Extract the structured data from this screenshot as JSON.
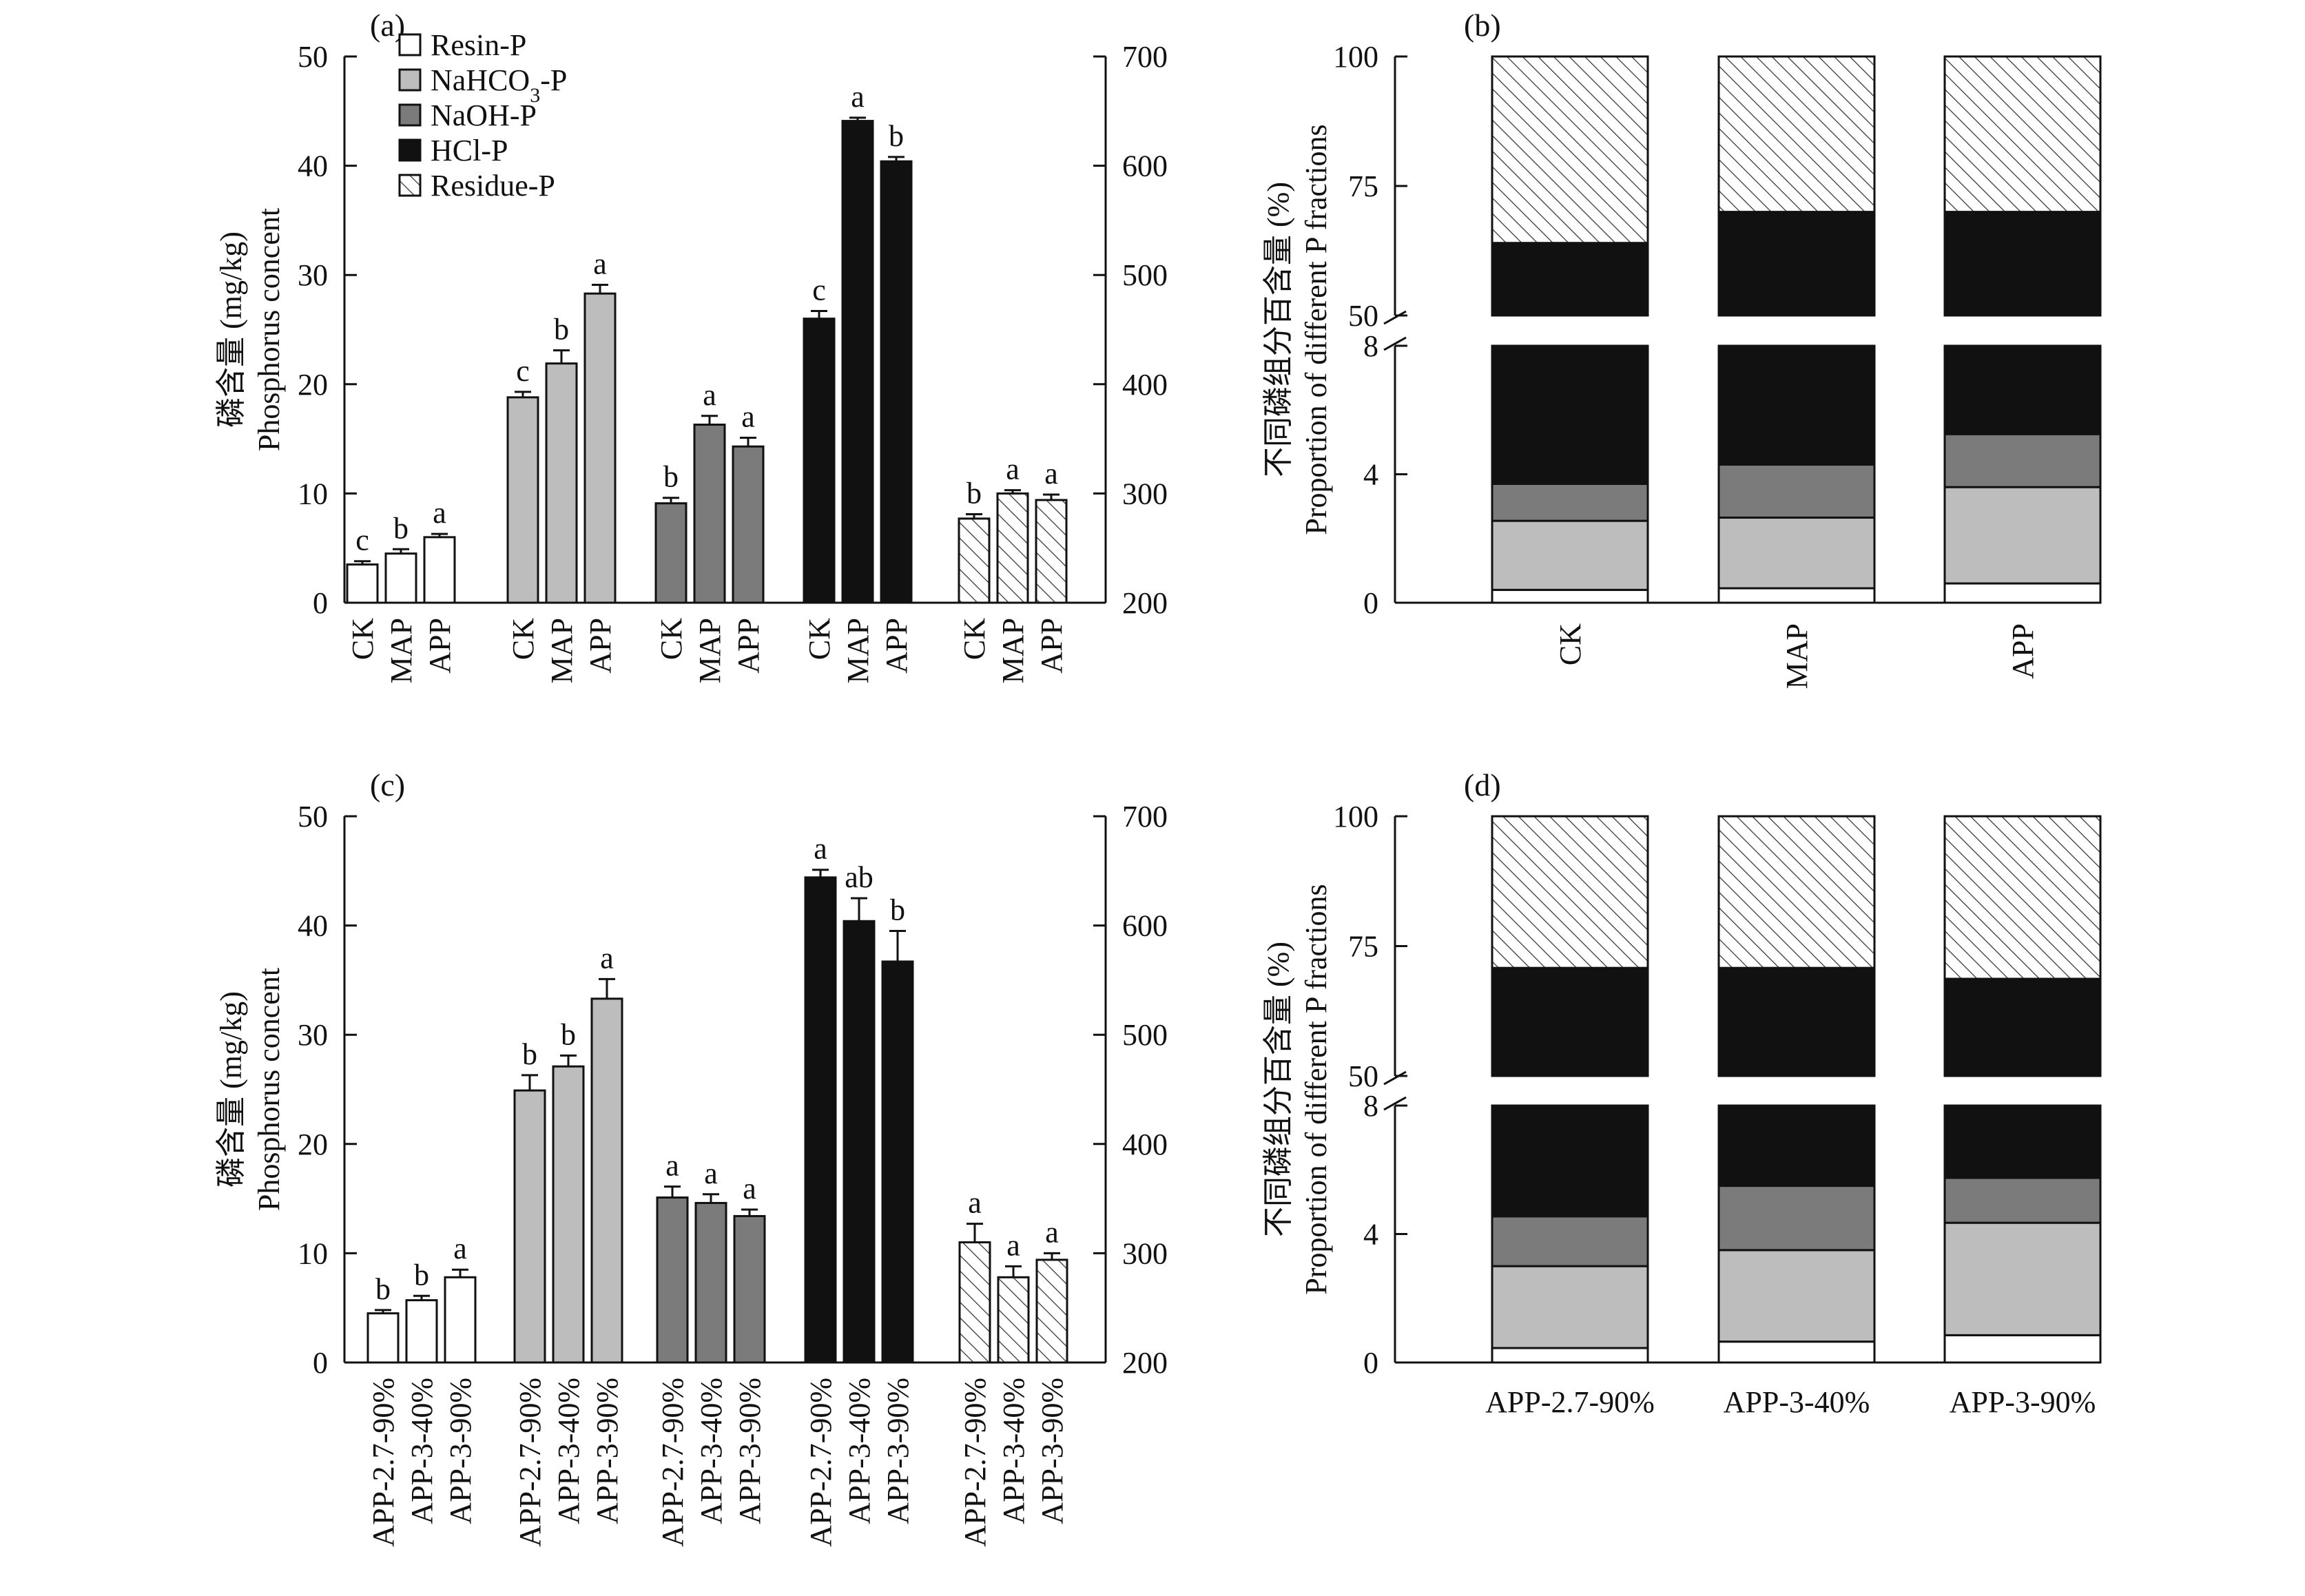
{
  "colors": {
    "resin": "#ffffff",
    "nahco3": "#bdbdbd",
    "naoh": "#7b7b7b",
    "hcl": "#111111",
    "residue": "hatch",
    "axis": "#111111"
  },
  "legend": {
    "items": [
      {
        "key": "resin",
        "label": "Resin-P"
      },
      {
        "key": "nahco3",
        "label": "NaHCO",
        "sub": "3",
        "suffix": "-P"
      },
      {
        "key": "naoh",
        "label": "NaOH-P"
      },
      {
        "key": "hcl",
        "label": "HCl-P"
      },
      {
        "key": "residue",
        "label": "Residue-P"
      }
    ]
  },
  "axes_text": {
    "left_ylabel_cn": "磷含量 (mg/kg)",
    "left_ylabel_en": "Phosphorus concent",
    "right_ylabel_cn": "不同磷组分百含量 (%)",
    "right_ylabel_en": "Proportion of different P fractions",
    "break_upper_min": "50",
    "break_lower_max": "8"
  },
  "chart_data": [
    {
      "panel": "(a)",
      "type": "bar",
      "title": "",
      "ylabel": "磷含量 (mg/kg) Phosphorus concent",
      "ylim": [
        0,
        50
      ],
      "yticks": [
        0,
        10,
        20,
        30,
        40,
        50
      ],
      "y2lim": [
        200,
        700
      ],
      "y2ticks": [
        200,
        300,
        400,
        500,
        600,
        700
      ],
      "y2_used_by": [
        "hcl",
        "residue"
      ],
      "categories": [
        "CK",
        "MAP",
        "APP"
      ],
      "series": [
        {
          "name": "Resin-P",
          "key": "resin",
          "axis": "left",
          "values": [
            3.5,
            4.5,
            6.0
          ],
          "errors": [
            0.3,
            0.4,
            0.3
          ],
          "letters": [
            "c",
            "b",
            "a"
          ]
        },
        {
          "name": "NaHCO3-P",
          "key": "nahco3",
          "axis": "left",
          "values": [
            18.8,
            21.9,
            28.3
          ],
          "errors": [
            0.5,
            1.2,
            0.8
          ],
          "letters": [
            "c",
            "b",
            "a"
          ]
        },
        {
          "name": "NaOH-P",
          "key": "naoh",
          "axis": "left",
          "values": [
            9.1,
            16.3,
            14.3
          ],
          "errors": [
            0.5,
            0.8,
            0.8
          ],
          "letters": [
            "b",
            "a",
            "a"
          ]
        },
        {
          "name": "HCl-P",
          "key": "hcl",
          "axis": "right",
          "values": [
            460,
            641,
            604
          ],
          "errors": [
            7,
            3,
            4
          ],
          "letters": [
            "c",
            "a",
            "b"
          ]
        },
        {
          "name": "Residue-P",
          "key": "residue",
          "axis": "right",
          "values": [
            277,
            300,
            294
          ],
          "errors": [
            4,
            3,
            5
          ],
          "letters": [
            "b",
            "a",
            "a"
          ]
        }
      ]
    },
    {
      "panel": "(b)",
      "type": "bar",
      "stacked": true,
      "title": "",
      "ylabel": "不同磷组分百含量 (%) Proportion of different P fractions",
      "broken_axis": {
        "lower": [
          0,
          8
        ],
        "upper": [
          50,
          100
        ]
      },
      "yticks_lower": [
        0,
        4,
        8
      ],
      "yticks_upper": [
        50,
        75,
        100
      ],
      "categories": [
        "CK",
        "MAP",
        "APP"
      ],
      "series": [
        {
          "name": "Resin-P",
          "key": "resin",
          "values": [
            0.4,
            0.45,
            0.6
          ]
        },
        {
          "name": "NaHCO3-P",
          "key": "nahco3",
          "values": [
            2.15,
            2.2,
            3.0
          ]
        },
        {
          "name": "NaOH-P",
          "key": "naoh",
          "values": [
            1.15,
            1.65,
            1.65
          ]
        },
        {
          "name": "HCl-P",
          "key": "hcl",
          "values": [
            60.3,
            65.7,
            64.75
          ]
        },
        {
          "name": "Residue-P",
          "key": "residue",
          "values": [
            36.0,
            30.0,
            30.0
          ]
        }
      ]
    },
    {
      "panel": "(c)",
      "type": "bar",
      "title": "",
      "ylabel": "磷含量 (mg/kg) Phosphorus concent",
      "ylim": [
        0,
        50
      ],
      "yticks": [
        0,
        10,
        20,
        30,
        40,
        50
      ],
      "y2lim": [
        200,
        700
      ],
      "y2ticks": [
        200,
        300,
        400,
        500,
        600,
        700
      ],
      "y2_used_by": [
        "hcl",
        "residue"
      ],
      "categories": [
        "APP-2.7-90%",
        "APP-3-40%",
        "APP-3-90%"
      ],
      "series": [
        {
          "name": "Resin-P",
          "key": "resin",
          "values": [
            4.5,
            5.7,
            7.8
          ],
          "axis": "left",
          "errors": [
            0.3,
            0.4,
            0.7
          ],
          "letters": [
            "b",
            "b",
            "a"
          ]
        },
        {
          "name": "NaHCO3-P",
          "key": "nahco3",
          "values": [
            24.9,
            27.1,
            33.3
          ],
          "axis": "left",
          "errors": [
            1.4,
            1.0,
            1.8
          ],
          "letters": [
            "b",
            "b",
            "a"
          ]
        },
        {
          "name": "NaOH-P",
          "key": "naoh",
          "values": [
            15.1,
            14.6,
            13.4
          ],
          "axis": "left",
          "errors": [
            1.0,
            0.8,
            0.6
          ],
          "letters": [
            "a",
            "a",
            "a"
          ]
        },
        {
          "name": "HCl-P",
          "key": "hcl",
          "values": [
            644,
            604,
            567
          ],
          "axis": "right",
          "errors": [
            7,
            21,
            28
          ],
          "letters": [
            "a",
            "ab",
            "b"
          ]
        },
        {
          "name": "Residue-P",
          "key": "residue",
          "values": [
            310,
            278,
            294
          ],
          "axis": "right",
          "errors": [
            17,
            10,
            6
          ],
          "letters": [
            "a",
            "a",
            "a"
          ]
        }
      ]
    },
    {
      "panel": "(d)",
      "type": "bar",
      "stacked": true,
      "title": "",
      "ylabel": "不同磷组分百含量 (%) Proportion of different P fractions",
      "broken_axis": {
        "lower": [
          0,
          8
        ],
        "upper": [
          50,
          100
        ]
      },
      "yticks_lower": [
        0,
        4,
        8
      ],
      "yticks_upper": [
        50,
        75,
        100
      ],
      "categories": [
        "APP-2.7-90%",
        "APP-3-40%",
        "APP-3-90%"
      ],
      "series": [
        {
          "name": "Resin-P",
          "key": "resin",
          "values": [
            0.45,
            0.65,
            0.85
          ]
        },
        {
          "name": "NaHCO3-P",
          "key": "nahco3",
          "values": [
            2.55,
            2.85,
            3.5
          ]
        },
        {
          "name": "NaOH-P",
          "key": "naoh",
          "values": [
            1.55,
            2.0,
            1.4
          ]
        },
        {
          "name": "HCl-P",
          "key": "hcl",
          "values": [
            66.25,
            65.3,
            62.95
          ]
        },
        {
          "name": "Residue-P",
          "key": "residue",
          "values": [
            29.2,
            29.2,
            31.3
          ]
        }
      ]
    }
  ]
}
